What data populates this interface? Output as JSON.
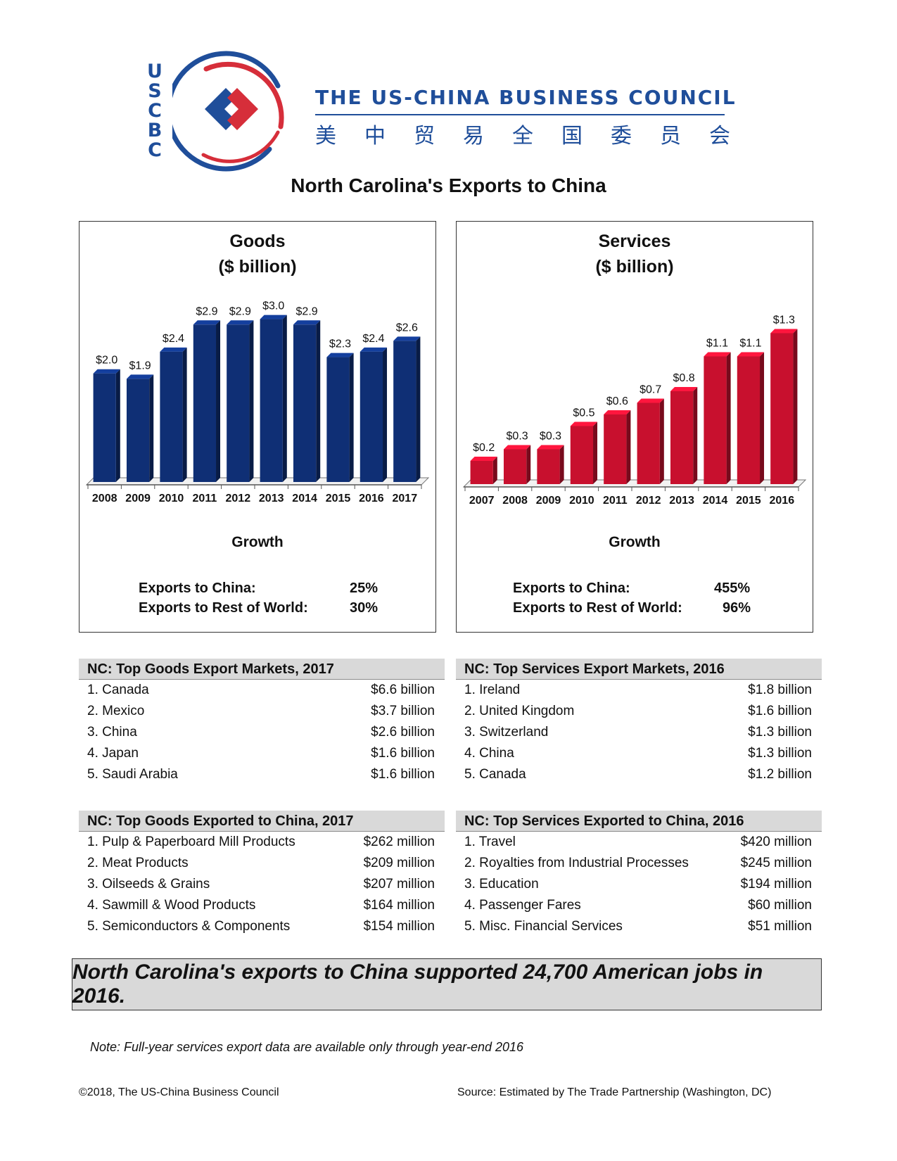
{
  "header": {
    "logo_letters": [
      "U",
      "S",
      "C",
      "B",
      "C"
    ],
    "organization": "THE US-CHINA BUSINESS COUNCIL",
    "organization_chinese": [
      "美",
      "中",
      "贸",
      "易",
      "全",
      "国",
      "委",
      "员",
      "会"
    ],
    "colors": {
      "blue": "#1f4e9a",
      "red": "#d62e3a"
    }
  },
  "title": "North Carolina's Exports to China",
  "chart_data": [
    {
      "type": "bar",
      "title": "Goods",
      "subtitle": "($ billion)",
      "categories": [
        "2008",
        "2009",
        "2010",
        "2011",
        "2012",
        "2013",
        "2014",
        "2015",
        "2016",
        "2017"
      ],
      "values": [
        2.0,
        1.9,
        2.4,
        2.9,
        2.9,
        3.0,
        2.9,
        2.3,
        2.4,
        2.6
      ],
      "data_labels": [
        "$2.0",
        "$1.9",
        "$2.4",
        "$2.9",
        "$2.9",
        "$3.0",
        "$2.9",
        "$2.3",
        "$2.4",
        "$2.6"
      ],
      "ylim": [
        0,
        3.5
      ],
      "grid": false,
      "color": "#0f2f75"
    },
    {
      "type": "bar",
      "title": "Services",
      "subtitle": "($ billion)",
      "categories": [
        "2007",
        "2008",
        "2009",
        "2010",
        "2011",
        "2012",
        "2013",
        "2014",
        "2015",
        "2016"
      ],
      "values": [
        0.2,
        0.3,
        0.3,
        0.5,
        0.6,
        0.7,
        0.8,
        1.1,
        1.1,
        1.3
      ],
      "data_labels": [
        "$0.2",
        "$0.3",
        "$0.3",
        "$0.5",
        "$0.6",
        "$0.7",
        "$0.8",
        "$1.1",
        "$1.1",
        "$1.3"
      ],
      "ylim": [
        0,
        1.6
      ],
      "grid": false,
      "color": "#c8102e"
    }
  ],
  "goods_growth": {
    "title": "Growth",
    "rows": [
      {
        "label": "Exports to China:",
        "value": "25%"
      },
      {
        "label": "Exports to Rest of World:",
        "value": "30%"
      }
    ]
  },
  "services_growth": {
    "title": "Growth",
    "rows": [
      {
        "label": "Exports to China:",
        "value": "455%"
      },
      {
        "label": "Exports to Rest of World:",
        "value": "96%"
      }
    ]
  },
  "tables": {
    "goods_markets": {
      "title": "NC: Top Goods Export Markets, 2017",
      "rows": [
        {
          "name": "1. Canada",
          "value": "$6.6 billion"
        },
        {
          "name": "2. Mexico",
          "value": "$3.7 billion"
        },
        {
          "name": "3. China",
          "value": "$2.6 billion"
        },
        {
          "name": "4. Japan",
          "value": "$1.6 billion"
        },
        {
          "name": "5. Saudi Arabia",
          "value": "$1.6 billion"
        }
      ]
    },
    "services_markets": {
      "title": "NC: Top Services Export Markets, 2016",
      "rows": [
        {
          "name": "1. Ireland",
          "value": "$1.8 billion"
        },
        {
          "name": "2. United Kingdom",
          "value": "$1.6 billion"
        },
        {
          "name": "3. Switzerland",
          "value": "$1.3 billion"
        },
        {
          "name": "4. China",
          "value": "$1.3 billion"
        },
        {
          "name": "5. Canada",
          "value": "$1.2 billion"
        }
      ]
    },
    "goods_to_china": {
      "title": "NC: Top Goods Exported to China, 2017",
      "rows": [
        {
          "name": "1. Pulp & Paperboard Mill Products",
          "value": "$262 million"
        },
        {
          "name": "2. Meat Products",
          "value": "$209 million"
        },
        {
          "name": "3. Oilseeds & Grains",
          "value": "$207 million"
        },
        {
          "name": "4. Sawmill & Wood Products",
          "value": "$164 million"
        },
        {
          "name": "5. Semiconductors & Components",
          "value": "$154 million"
        }
      ]
    },
    "services_to_china": {
      "title": "NC: Top Services Exported to China, 2016",
      "rows": [
        {
          "name": "1. Travel",
          "value": "$420 million"
        },
        {
          "name": "2. Royalties from Industrial Processes",
          "value": "$245 million"
        },
        {
          "name": "3. Education",
          "value": "$194 million"
        },
        {
          "name": "4. Passenger Fares",
          "value": "$60 million"
        },
        {
          "name": "5. Misc. Financial Services",
          "value": "$51 million"
        }
      ]
    }
  },
  "banner": "North Carolina's exports to China supported 24,700 American jobs in 2016.",
  "note": "Note: Full-year services export data are available only through year-end 2016",
  "footer": {
    "copyright": "©2018, The US-China Business Council",
    "source": "Source: Estimated by The Trade Partnership (Washington, DC)"
  }
}
